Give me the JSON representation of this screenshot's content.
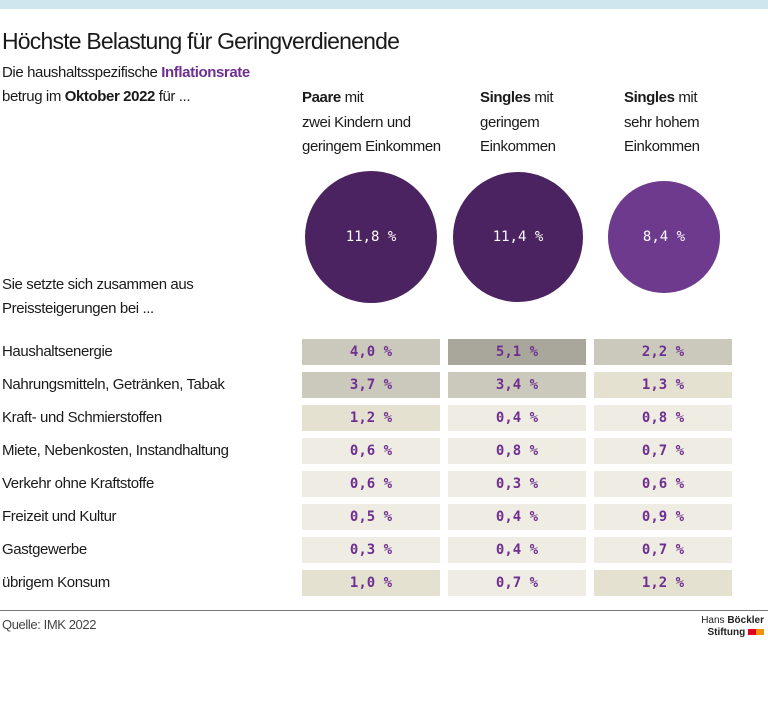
{
  "header": {
    "title": "Höchste Belastung für Geringverdienende",
    "intro_1": "Die haushaltsspezifische ",
    "intro_1_highlight": "Inflationsrate",
    "intro_2a": "betrug im ",
    "intro_2_bold": "Oktober 2022",
    "intro_2b": " für ...",
    "composition_1": "Sie setzte sich zusammen aus",
    "composition_2": "Preissteigerungen bei ..."
  },
  "columns": [
    {
      "bold": "Paare",
      "rest": " mit",
      "line2": "zwei Kindern und",
      "line3": "geringem Einkommen"
    },
    {
      "bold": "Singles",
      "rest": " mit",
      "line2": "geringem",
      "line3": "Einkommen"
    },
    {
      "bold": "Singles",
      "rest": " mit",
      "line2": "sehr hohem",
      "line3": "Einkommen"
    }
  ],
  "chart_data": {
    "type": "table",
    "totals": {
      "values": [
        11.8,
        11.4,
        8.4
      ],
      "labels": [
        "11,8 %",
        "11,4 %",
        "8,4 %"
      ],
      "colors": [
        "#4b2360",
        "#4b2360",
        "#6e3a8e"
      ]
    },
    "categories": [
      "Haushaltsenergie",
      "Nahrungsmitteln, Getränken, Tabak",
      "Kraft- und Schmierstoffen",
      "Miete, Nebenkosten, Instandhaltung",
      "Verkehr ohne Kraftstoffe",
      "Freizeit und Kultur",
      "Gastgewerbe",
      "übrigem Konsum"
    ],
    "series": [
      {
        "values": [
          4.0,
          3.7,
          1.2,
          0.6,
          0.6,
          0.5,
          0.3,
          1.0
        ],
        "labels": [
          "4,0 %",
          "3,7 %",
          "1,2 %",
          "0,6 %",
          "0,6 %",
          "0,5 %",
          "0,3 %",
          "1,0 %"
        ]
      },
      {
        "values": [
          5.1,
          3.4,
          0.4,
          0.8,
          0.3,
          0.4,
          0.4,
          0.7
        ],
        "labels": [
          "5,1 %",
          "3,4 %",
          "0,4 %",
          "0,8 %",
          "0,3 %",
          "0,4 %",
          "0,4 %",
          "0,7 %"
        ]
      },
      {
        "values": [
          2.2,
          1.3,
          0.8,
          0.7,
          0.6,
          0.9,
          0.7,
          1.2
        ],
        "labels": [
          "2,2 %",
          "1,3 %",
          "0,8 %",
          "0,7 %",
          "0,6 %",
          "0,9 %",
          "0,7 %",
          "1,2 %"
        ]
      }
    ],
    "value_color": "#6f2f91",
    "cell_colors": {
      "above_5": "#a9a79b",
      "2_to_5": "#cbc9bb",
      "1_to_2": "#e4e1d0",
      "below_1": "#eeece3"
    }
  },
  "footer": {
    "source": "Quelle: IMK 2022",
    "logo_line1a": "Hans ",
    "logo_line1b": "Böckler",
    "logo_line2": "Stiftung"
  }
}
